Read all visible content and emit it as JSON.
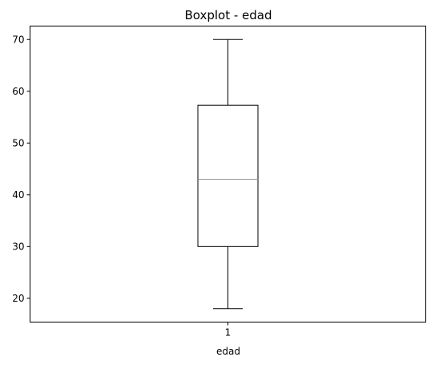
{
  "chart_data": {
    "type": "boxplot",
    "title": "Boxplot - edad",
    "xlabel": "edad",
    "ylabel": "",
    "categories": [
      "1"
    ],
    "boxes": [
      {
        "category": "1",
        "whisker_low": 18,
        "q1": 30,
        "median": 43,
        "q3": 57.3,
        "whisker_high": 70
      }
    ],
    "ylim": [
      15.4,
      72.6
    ],
    "yticks": [
      20,
      30,
      40,
      50,
      60,
      70
    ],
    "grid": false,
    "colors": {
      "box": "#000000",
      "median": "#ff7f0e",
      "axes": "#000000"
    }
  }
}
